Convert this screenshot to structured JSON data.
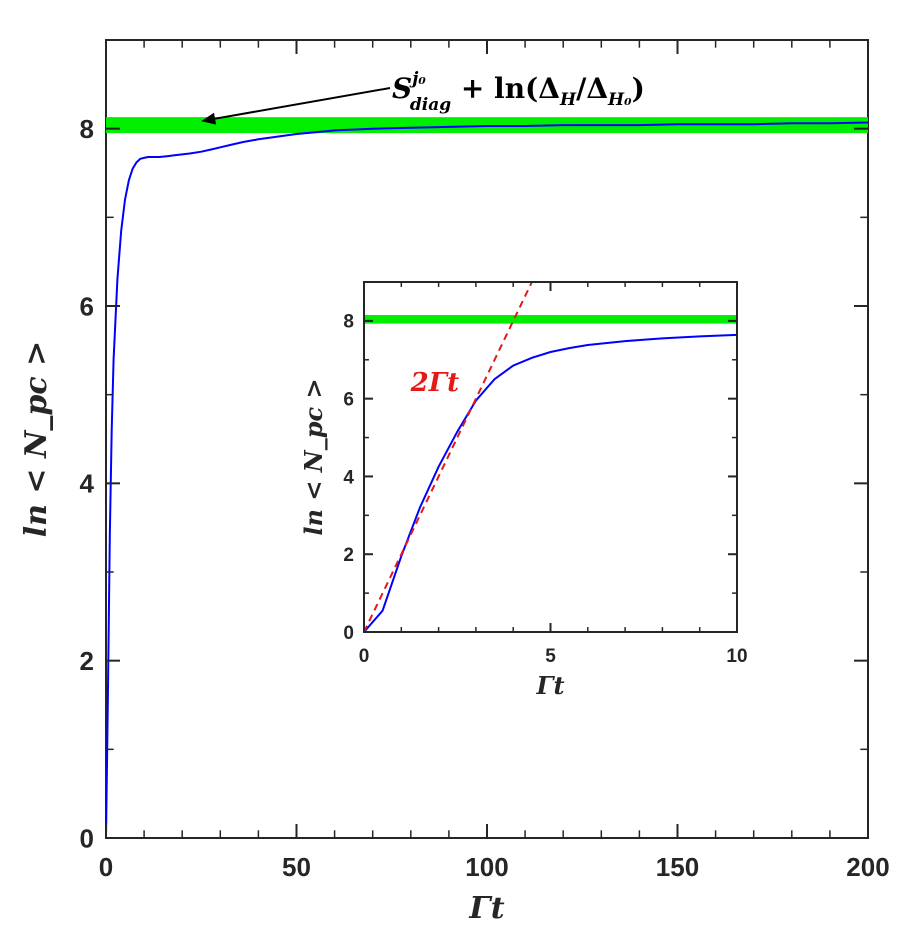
{
  "chart_data": [
    {
      "type": "line",
      "xlabel": "Γt",
      "ylabel": "ln < N_pc >",
      "xlim": [
        0,
        200
      ],
      "ylim": [
        0,
        9
      ],
      "xticks": [
        "0",
        "50",
        "100",
        "150",
        "200"
      ],
      "yticks": [
        "0",
        "2",
        "4",
        "6",
        "8"
      ],
      "grid": false,
      "series": [
        {
          "color": "#0000ff",
          "x": [
            0,
            0.5,
            1,
            1.5,
            2,
            3,
            4,
            5,
            6,
            7,
            8,
            9,
            10,
            11,
            12,
            14,
            16,
            18,
            20,
            22,
            25,
            28,
            30,
            33,
            36,
            40,
            45,
            50,
            55,
            60,
            70,
            80,
            90,
            100,
            110,
            120,
            130,
            140,
            150,
            160,
            170,
            180,
            190,
            200
          ],
          "y": [
            0,
            1.6,
            3.4,
            4.6,
            5.4,
            6.3,
            6.85,
            7.2,
            7.42,
            7.55,
            7.62,
            7.66,
            7.67,
            7.68,
            7.68,
            7.68,
            7.69,
            7.7,
            7.71,
            7.72,
            7.74,
            7.77,
            7.79,
            7.82,
            7.85,
            7.88,
            7.91,
            7.94,
            7.96,
            7.98,
            8.0,
            8.01,
            8.02,
            8.03,
            8.03,
            8.04,
            8.04,
            8.04,
            8.05,
            8.05,
            8.05,
            8.06,
            8.06,
            8.07
          ]
        },
        {
          "color": "#00ee00",
          "x": [
            0,
            200
          ],
          "y": [
            8.04,
            8.04
          ],
          "band_width": 0.18
        }
      ],
      "annotations": [
        {
          "text_main": "S",
          "text_sup": "j₀",
          "text_sub": "diag",
          "text_rest": " + ln(Δ",
          "text_sub2": "H",
          "text_mid": "/Δ",
          "text_sub3": "H₀",
          "text_end": ")",
          "arrow_to": [
            25,
            8.04
          ]
        }
      ]
    },
    {
      "type": "line",
      "xlabel": "Γt",
      "ylabel": "ln < N_pc >",
      "xlim": [
        0,
        10
      ],
      "ylim": [
        0,
        9
      ],
      "xticks": [
        "0",
        "5",
        "10"
      ],
      "yticks": [
        "0",
        "2",
        "4",
        "6",
        "8"
      ],
      "grid": false,
      "series": [
        {
          "color": "#0000ff",
          "x": [
            0,
            0.5,
            1,
            1.5,
            2,
            2.5,
            3,
            3.5,
            4,
            4.5,
            5,
            5.5,
            6,
            7,
            8,
            9,
            10
          ],
          "y": [
            0,
            0.55,
            1.95,
            3.2,
            4.25,
            5.15,
            5.95,
            6.5,
            6.85,
            7.05,
            7.2,
            7.3,
            7.38,
            7.48,
            7.55,
            7.6,
            7.64
          ]
        },
        {
          "color": "#00ee00",
          "x": [
            0,
            10
          ],
          "y": [
            8.04,
            8.04
          ],
          "band_width": 0.22
        },
        {
          "name": "2Γt",
          "color": "#e61919",
          "dashed": true,
          "x": [
            0,
            4.5
          ],
          "y": [
            0,
            9
          ]
        }
      ]
    }
  ]
}
